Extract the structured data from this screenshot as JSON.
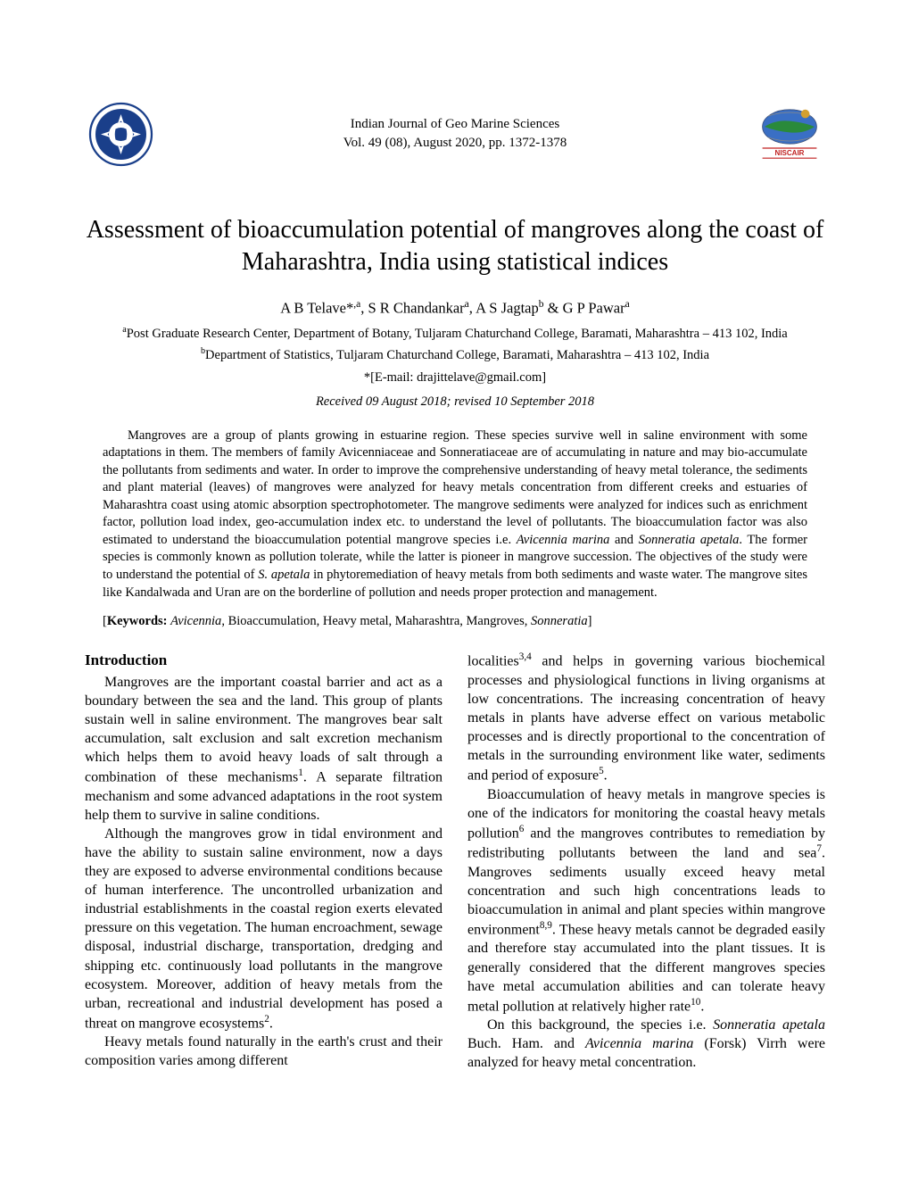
{
  "journal": {
    "name": "Indian Journal of Geo Marine Sciences",
    "issue": "Vol. 49 (08), August 2020, pp. 1372-1378"
  },
  "title": "Assessment of bioaccumulation potential of mangroves along the coast of Maharashtra, India using statistical indices",
  "authors_html": "A B Telave*<sup>,a</sup>, S R Chandankar<sup>a</sup>, A S Jagtap<sup>b</sup> & G P Pawar<sup>a</sup>",
  "affiliations": {
    "a": "Post Graduate Research Center, Department of Botany, Tuljaram Chaturchand College, Baramati, Maharashtra – 413 102, India",
    "b": "Department of Statistics, Tuljaram Chaturchand College, Baramati, Maharashtra – 413 102, India"
  },
  "email": "*[E-mail: drajittelave@gmail.com]",
  "received": "Received 09 August 2018; revised 10 September 2018",
  "abstract": "Mangroves are a group of plants growing in estuarine region. These species survive well in saline environment with some adaptations in them. The members of family Avicenniaceae and Sonneratiaceae are of accumulating in nature and may bio-accumulate the pollutants from sediments and water. In order to improve the comprehensive understanding of heavy metal tolerance, the sediments and plant material (leaves) of mangroves were analyzed for heavy metals concentration from different creeks and estuaries of Maharashtra coast using atomic absorption spectrophotometer. The mangrove sediments were analyzed for indices such as enrichment factor, pollution load index, geo-accumulation index etc. to understand the level of pollutants. The bioaccumulation factor was also estimated to understand the bioaccumulation potential mangrove species i.e. <span class=\"italic\">Avicennia marina</span> and <span class=\"italic\">Sonneratia apetala</span>. The former species is commonly known as pollution tolerate, while the latter is pioneer in mangrove succession. The objectives of the study were to understand the potential of <span class=\"italic\">S. apetala</span> in phytoremediation of heavy metals from both sediments and waste water. The mangrove sites like Kandalwada and Uran are on the borderline of pollution and needs proper protection and management.",
  "keywords_label": "Keywords:",
  "keywords_html": " <span class=\"kw-italic\">Avicennia</span>, Bioaccumulation, Heavy metal, Maharashtra, Mangroves, <span class=\"kw-italic\">Sonneratia</span>",
  "section_heading": "Introduction",
  "col1": {
    "p1": "Mangroves are the important coastal barrier and act as a boundary between the sea and the land. This group of plants sustain well in saline environment. The mangroves bear salt accumulation, salt exclusion and salt excretion mechanism which helps them to avoid heavy loads of salt through a combination of these mechanisms<sup>1</sup>. A separate filtration mechanism and some advanced adaptations in the root system help them to survive in saline conditions.",
    "p2": "Although the mangroves grow in tidal environment and have the ability to sustain saline environment, now a days they are exposed to adverse environmental conditions because of human interference. The uncontrolled urbanization and industrial establishments in the coastal region exerts elevated pressure on this vegetation. The human encroachment, sewage disposal, industrial discharge, transportation, dredging and shipping etc. continuously load pollutants in the mangrove ecosystem. Moreover, addition of heavy metals from the urban, recreational and industrial development has posed a threat on mangrove ecosystems<sup>2</sup>.",
    "p3": "Heavy metals found naturally in the earth's crust and their composition varies among different"
  },
  "col2": {
    "p1": "localities<sup>3,4</sup> and helps in governing various biochemical processes and physiological functions in living organisms at low concentrations. The increasing concentration of heavy metals in plants have adverse effect on various metabolic processes and is directly proportional to the concentration of metals in the surrounding environment like water, sediments and period of exposure<sup>5</sup>.",
    "p2": "Bioaccumulation of heavy metals in mangrove species is one of the indicators for monitoring the coastal heavy metals pollution<sup>6</sup> and the mangroves contributes to remediation by redistributing pollutants between the land and sea<sup>7</sup>. Mangroves sediments usually exceed heavy metal concentration and such high concentrations leads to bioaccumulation in animal and plant species within mangrove environment<sup>8,9</sup>. These heavy metals cannot be degraded easily and therefore stay accumulated into the plant tissues. It is generally considered that the different mangroves species have metal accumulation abilities and can tolerate heavy metal pollution at relatively higher rate<sup>10</sup>.",
    "p3": "On this background, the species i.e. <span class=\"italic\">Sonneratia apetala</span> Buch. Ham. and <span class=\"italic\">Avicennia marina</span> (Forsk) Virrh were analyzed for heavy metal concentration."
  },
  "logos": {
    "left_name": "csir-logo",
    "right_name": "niscair-logo",
    "right_text": "NISCAIR"
  },
  "colors": {
    "text": "#000000",
    "background": "#ffffff",
    "logo_blue": "#1a3f8a",
    "logo_red": "#c02020",
    "logo_green": "#2a8a3a"
  }
}
